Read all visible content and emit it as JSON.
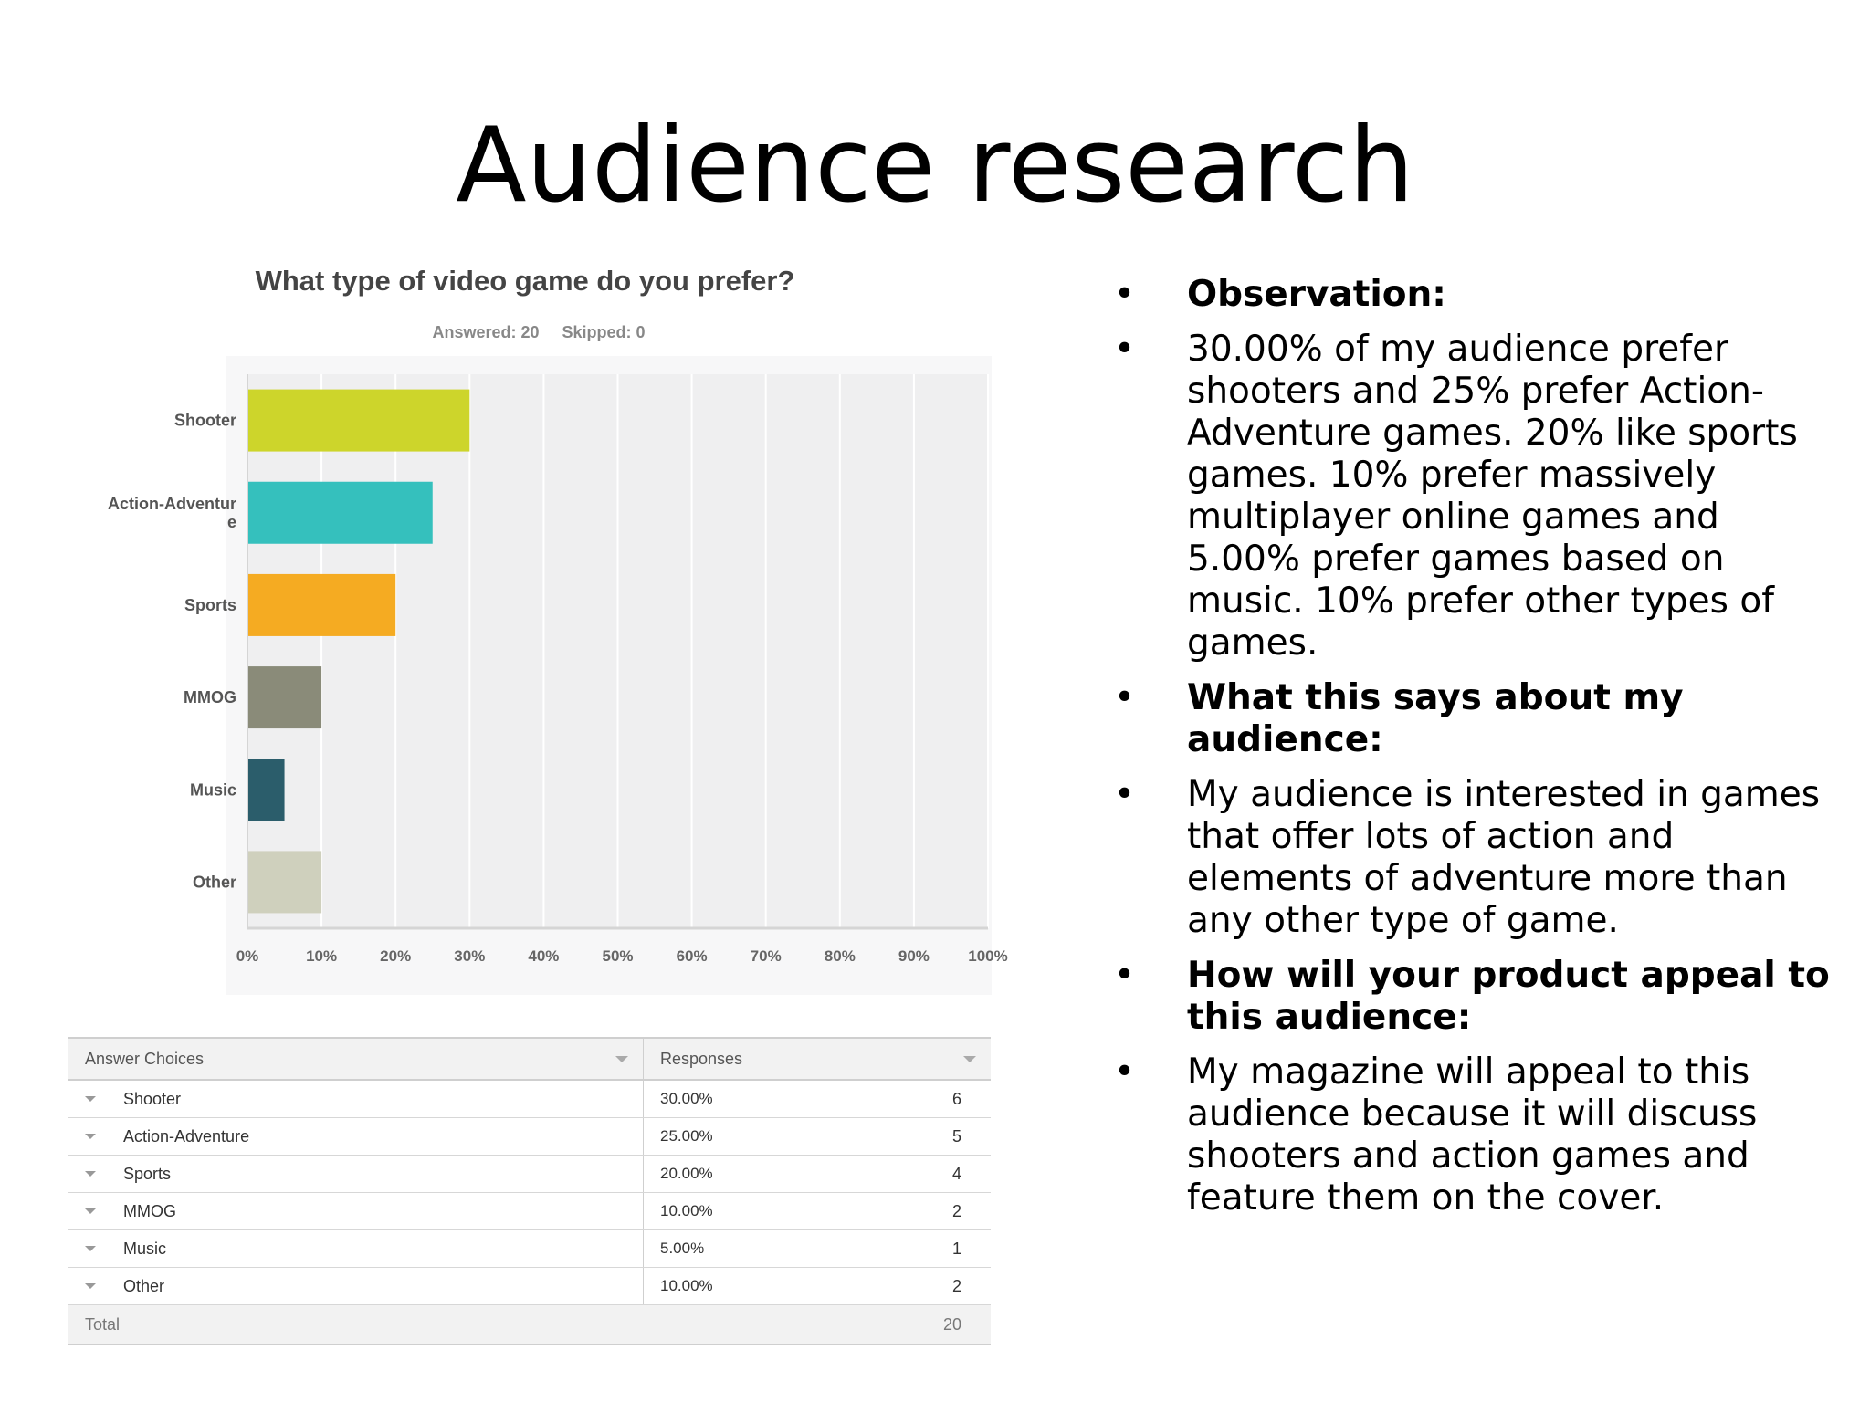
{
  "slide": {
    "title": "Audience research"
  },
  "survey": {
    "question": "What type of video game do you prefer?",
    "answered": "Answered: 20",
    "skipped": "Skipped: 0"
  },
  "chart_data": {
    "type": "bar",
    "orientation": "horizontal",
    "categories": [
      "Shooter",
      "Action-Adventure",
      "Sports",
      "MMOG",
      "Music",
      "Other"
    ],
    "category_labels": [
      [
        "Shooter"
      ],
      [
        "Action-Adventur",
        "e"
      ],
      [
        "Sports"
      ],
      [
        "MMOG"
      ],
      [
        "Music"
      ],
      [
        "Other"
      ]
    ],
    "values": [
      30,
      25,
      20,
      10,
      5,
      10
    ],
    "colors": [
      "#cdd52b",
      "#35c0bd",
      "#f5ab22",
      "#8a8b79",
      "#2b5d6b",
      "#cfd0bd"
    ],
    "xlim": [
      0,
      100
    ],
    "xticks": [
      "0%",
      "10%",
      "20%",
      "30%",
      "40%",
      "50%",
      "60%",
      "70%",
      "80%",
      "90%",
      "100%"
    ],
    "grid": true
  },
  "table": {
    "header": {
      "choice": "Answer Choices",
      "responses": "Responses"
    },
    "rows": [
      {
        "choice": "Shooter",
        "pct": "30.00%",
        "count": "6"
      },
      {
        "choice": "Action-Adventure",
        "pct": "25.00%",
        "count": "5"
      },
      {
        "choice": "Sports",
        "pct": "20.00%",
        "count": "4"
      },
      {
        "choice": "MMOG",
        "pct": "10.00%",
        "count": "2"
      },
      {
        "choice": "Music",
        "pct": "5.00%",
        "count": "1"
      },
      {
        "choice": "Other",
        "pct": "10.00%",
        "count": "2"
      }
    ],
    "footer": {
      "label": "Total",
      "value": "20"
    }
  },
  "bullets": [
    {
      "bold": true,
      "text": "Observation:"
    },
    {
      "bold": false,
      "text": "30.00% of my audience prefer shooters and 25% prefer Action-Adventure games. 20% like sports games. 10% prefer massively multiplayer online games and 5.00% prefer games based on music. 10% prefer other types of games."
    },
    {
      "bold": true,
      "text": "What this says about my audience:"
    },
    {
      "bold": false,
      "text": "My audience is interested in games that offer lots of action and elements of adventure more than any other type of game."
    },
    {
      "bold": true,
      "text": "How will your product appeal to this audience:"
    },
    {
      "bold": false,
      "text": "My magazine will appeal to this audience because it will discuss shooters and action games and feature them on the cover."
    }
  ],
  "bullet_char": "•"
}
